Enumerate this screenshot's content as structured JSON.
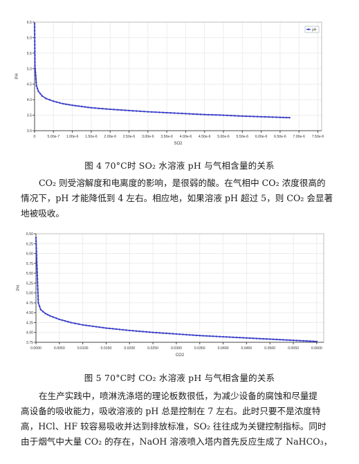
{
  "figure1": {
    "caption": "图 4 70°C时 SO₂ 水溶液 pH 与气相含量的关系",
    "chart_data": {
      "type": "line",
      "xlabel": "SO2",
      "ylabel": "PH",
      "legend": "pH",
      "legend_position": "top-right",
      "xlim": [
        0,
        7.6e-06
      ],
      "ylim": [
        3.0,
        6.5
      ],
      "x_ticks": [
        "0",
        "5.00e-7",
        "1.00e-6",
        "1.50e-6",
        "2.00e-6",
        "2.50e-6",
        "3.00e-6",
        "3.50e-6",
        "4.00e-6",
        "4.50e-6",
        "5.00e-6",
        "5.50e-6",
        "6.00e-6",
        "6.50e-6",
        "7.00e-6",
        "7.50e-6"
      ],
      "y_ticks": [
        "3.0",
        "3.5",
        "4.0",
        "4.5",
        "5.0",
        "5.5",
        "6.0",
        "6.5"
      ],
      "grid": true,
      "series": [
        {
          "name": "pH",
          "color": "#3a3fc8",
          "x": [
            0,
            1e-08,
            5e-08,
            1e-07,
            2e-07,
            3e-07,
            5e-07,
            7.5e-07,
            1e-06,
            1.5e-06,
            2e-06,
            2.5e-06,
            3e-06,
            3.5e-06,
            4e-06,
            4.5e-06,
            5e-06,
            5.5e-06,
            6e-06,
            6.5e-06,
            6.75e-06
          ],
          "y": [
            6.45,
            5.1,
            4.45,
            4.27,
            4.12,
            4.04,
            3.95,
            3.87,
            3.82,
            3.74,
            3.69,
            3.65,
            3.61,
            3.58,
            3.55,
            3.52,
            3.5,
            3.47,
            3.45,
            3.43,
            3.42
          ]
        }
      ]
    }
  },
  "paragraph1": {
    "lines": [
      "CO₂ 则受溶解度和电离度的影响，是很弱的酸。在气相中 CO₂ 浓度很高的",
      "情况下，pH 才能降低到 4 左右。相应地，如果溶液 pH 超过 5，则 CO₂ 会显著",
      "地被吸收。"
    ]
  },
  "figure2": {
    "caption": "图 5 70°C时 CO₂ 水溶液 pH 与气相含量的关系",
    "chart_data": {
      "type": "line",
      "xlabel": "CO2",
      "ylabel": "PH",
      "xlim": [
        0,
        0.0615
      ],
      "ylim": [
        3.75,
        6.5
      ],
      "x_ticks": [
        "0.0000",
        "0.0050",
        "0.0100",
        "0.0150",
        "0.0200",
        "0.0250",
        "0.0300",
        "0.0350",
        "0.0400",
        "0.0450",
        "0.0500",
        "0.0550",
        "0.0600"
      ],
      "y_ticks": [
        "3.75",
        "4.00",
        "4.25",
        "4.50",
        "4.75",
        "5.00",
        "5.25",
        "5.50",
        "5.75",
        "6.00",
        "6.25",
        "6.50"
      ],
      "grid": true,
      "series": [
        {
          "color": "#3a3fc8",
          "x": [
            0,
            0.0002,
            0.0005,
            0.001,
            0.002,
            0.003,
            0.005,
            0.0075,
            0.01,
            0.015,
            0.02,
            0.025,
            0.03,
            0.035,
            0.04,
            0.045,
            0.05,
            0.055,
            0.06
          ],
          "y": [
            6.4,
            5.7,
            4.75,
            4.58,
            4.48,
            4.42,
            4.33,
            4.25,
            4.19,
            4.11,
            4.05,
            4.0,
            3.96,
            3.92,
            3.89,
            3.86,
            3.83,
            3.8,
            3.77
          ]
        }
      ]
    }
  },
  "paragraph2": {
    "lines": [
      "在生产实践中，喷淋洗涤塔的理论板数很低，为减少设备的腐蚀和尽量提",
      "高设备的吸收能力，吸收溶液的 pH 总是控制在 7 左右。此时只要不是浓度特",
      "高，HCl、HF 较容易吸收并达到排放标准，SO₂ 往往成为关键控制指标。同时",
      "由于烟气中大量 CO₂ 的存在，NaOH 溶液喷入塔内首先反应生成了 NaHCO₃，"
    ]
  }
}
